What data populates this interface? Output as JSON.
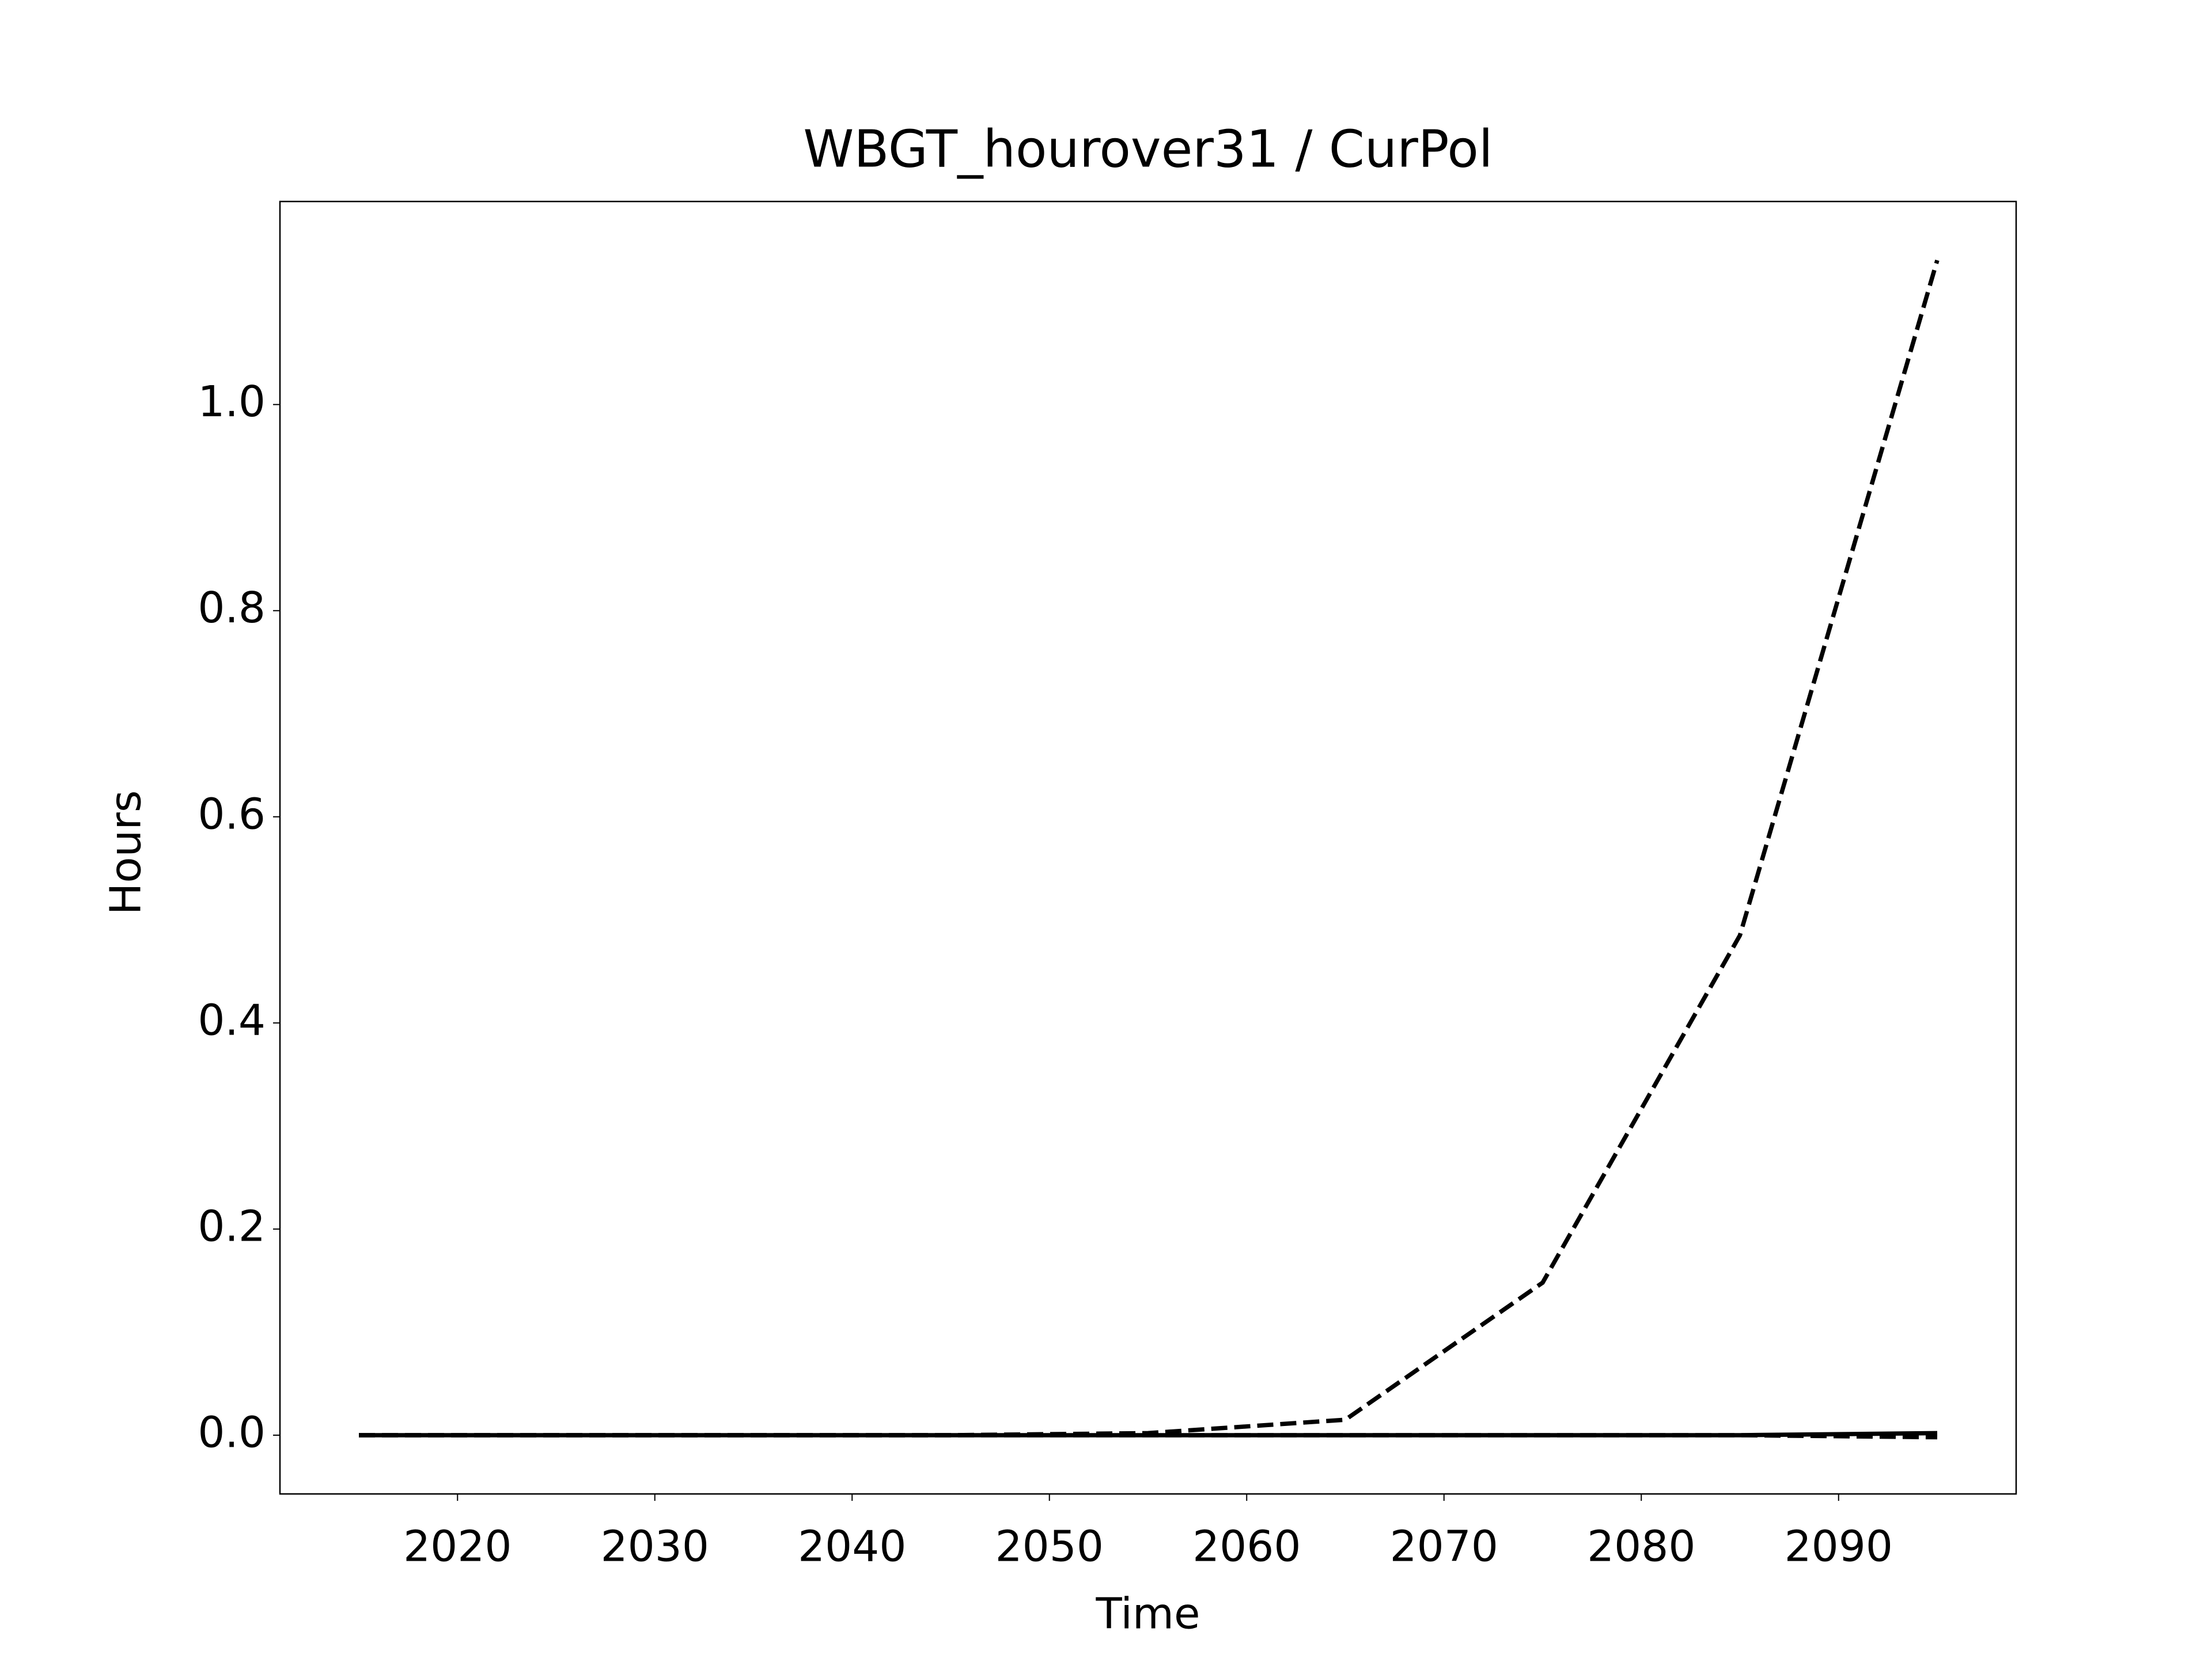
{
  "chart_data": {
    "type": "line",
    "title": "WBGT_hourover31 / CurPol",
    "x_label": "Time",
    "y_label": "Hours",
    "x": [
      2015,
      2025,
      2035,
      2045,
      2055,
      2065,
      2075,
      2085,
      2095
    ],
    "series": [
      {
        "color": "#000000",
        "style": "dashed",
        "values": [
          0,
          0,
          0,
          0,
          0.002,
          0.015,
          0.148,
          0.485,
          1.14
        ]
      },
      {
        "color": "#000000",
        "style": "solid",
        "values": [
          0,
          0,
          0,
          0,
          0,
          0,
          0,
          0,
          0.002
        ]
      },
      {
        "color": "#000000",
        "style": "dashed",
        "values": [
          0,
          0,
          0,
          0,
          0,
          0,
          0,
          0,
          -0.002
        ]
      }
    ],
    "xlim": [
      2011,
      2099
    ],
    "xticks": [
      2020,
      2030,
      2040,
      2050,
      2060,
      2070,
      2080,
      2090
    ],
    "ylim": [
      -0.057,
      1.197
    ],
    "yticks": [
      {
        "value": 0,
        "label": "0.0"
      },
      0.2,
      0.4,
      0.6,
      0.8,
      {
        "value": 1,
        "label": "1.0"
      }
    ],
    "grid": false
  }
}
